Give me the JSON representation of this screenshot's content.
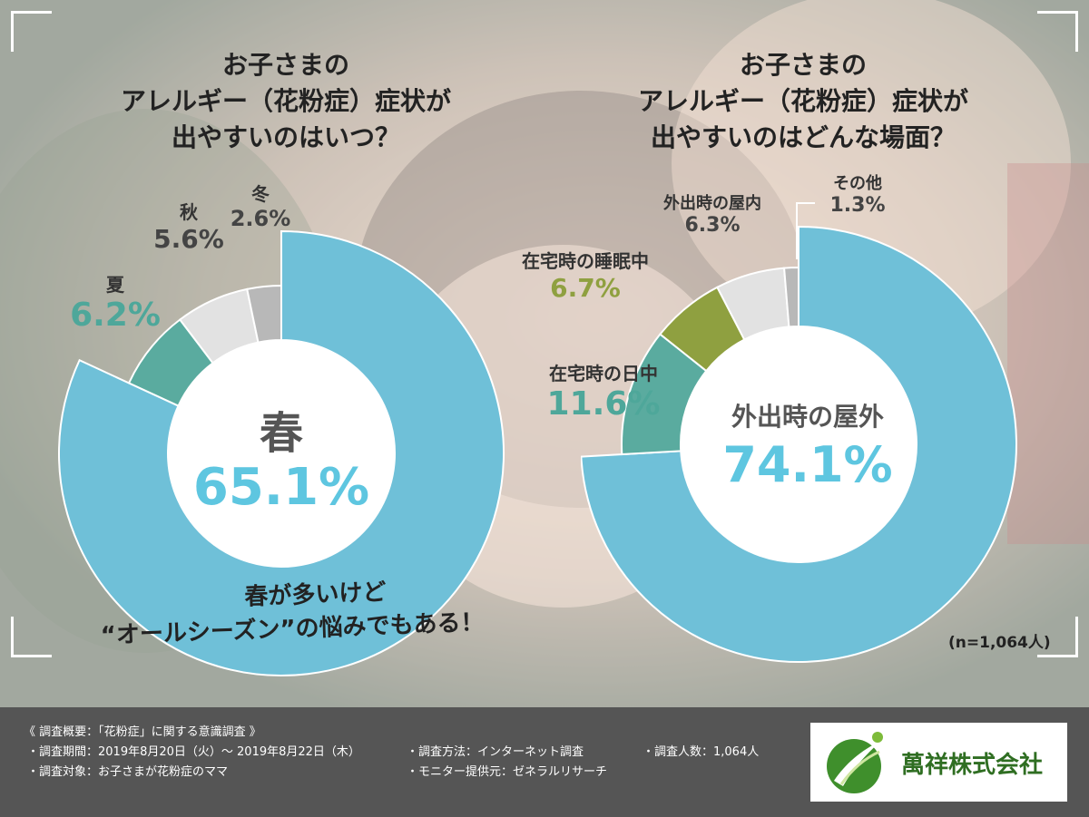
{
  "colors": {
    "spring_blue": "#6fc0d8",
    "summer_teal": "#5aab9f",
    "autumn_lightgray": "#e2e2e2",
    "winter_gray": "#b8b8b8",
    "sleep_olive": "#8fa040",
    "value_cyan": "#5ec6e0",
    "teal_text": "#4ea79a",
    "footer_bg": "#555555",
    "logo_green": "#3f8f2c"
  },
  "left_title": [
    "お子さまの",
    "アレルギー（花粉症）症状が",
    "出やすいのはいつ？"
  ],
  "right_title": [
    "お子さまの",
    "アレルギー（花粉症）症状が",
    "出やすいのはどんな場面？"
  ],
  "left_center": {
    "name": "春",
    "value": "65.1%"
  },
  "right_center": {
    "name": "外出時の屋外",
    "value": "74.1%"
  },
  "left_labels": {
    "summer": {
      "name": "夏",
      "value": "6.2%"
    },
    "autumn": {
      "name": "秋",
      "value": "5.6%"
    },
    "winter": {
      "name": "冬",
      "value": "2.6%"
    }
  },
  "right_labels": {
    "home_day": {
      "name": "在宅時の日中",
      "value": "11.6%"
    },
    "home_sleep": {
      "name": "在宅時の睡眠中",
      "value": "6.7%"
    },
    "indoor_out": {
      "name": "外出時の屋内",
      "value": "6.3%"
    },
    "other": {
      "name": "その他",
      "value": "1.3%"
    }
  },
  "caption": {
    "line1": "春が多いけど",
    "line2": "“オールシーズン”の悩みでもある！"
  },
  "sample_note": "(n=1,064人)",
  "footer": {
    "heading": "《 調査概要：「花粉症」に関する意識調査 》",
    "period": "・調査期間：2019年8月20日（火）～ 2019年8月22日（木）",
    "target": "・調査対象：お子さまが花粉症のママ",
    "method": "・調査方法：インターネット調査",
    "provider": "・モニター提供元：ゼネラルリサーチ",
    "count": "・調査人数：1,064人"
  },
  "logo": {
    "text": "萬祥株式会社",
    "icon": "leaf-swoosh-logo-icon"
  },
  "chart_data": [
    {
      "type": "pie",
      "title": "お子さまのアレルギー（花粉症）症状が出やすいのはいつ？",
      "categories": [
        "春",
        "夏",
        "秋",
        "冬"
      ],
      "values": [
        65.1,
        6.2,
        5.6,
        2.6
      ],
      "colors": [
        "#6fc0d8",
        "#5aab9f",
        "#e2e2e2",
        "#b8b8b8"
      ],
      "unit": "%"
    },
    {
      "type": "pie",
      "title": "お子さまのアレルギー（花粉症）症状が出やすいのはどんな場面？",
      "categories": [
        "外出時の屋外",
        "在宅時の日中",
        "在宅時の睡眠中",
        "外出時の屋内",
        "その他"
      ],
      "values": [
        74.1,
        11.6,
        6.7,
        6.3,
        1.3
      ],
      "colors": [
        "#6fc0d8",
        "#5aab9f",
        "#8fa040",
        "#e2e2e2",
        "#b8b8b8"
      ],
      "unit": "%",
      "n": "(n=1,064人)"
    }
  ]
}
